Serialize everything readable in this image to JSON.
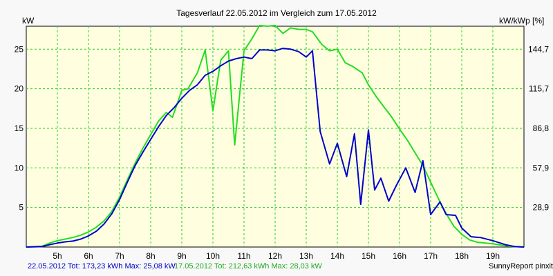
{
  "chart_data": {
    "type": "line",
    "title": "Tagesverlauf 22.05.2012 im Vergleich zum 17.05.2012",
    "ylabel_left": "kW",
    "ylabel_right": "kW/kWp [%]",
    "x_ticks": [
      "5h",
      "6h",
      "7h",
      "8h",
      "9h",
      "10h",
      "11h",
      "12h",
      "13h",
      "14h",
      "15h",
      "16h",
      "17h",
      "18h",
      "19h"
    ],
    "y_ticks_left": [
      "5",
      "10",
      "15",
      "20",
      "25"
    ],
    "y_ticks_right": [
      "28,9",
      "57,9",
      "86,8",
      "115,7",
      "144,7"
    ],
    "xlim": [
      4,
      20
    ],
    "ylim": [
      0,
      27.9
    ],
    "grid": true,
    "background_color": "#ffffe0",
    "grid_color": "#22cc22",
    "series": [
      {
        "name": "22.05.2012",
        "color": "#0000cc",
        "points": [
          [
            4.0,
            0.0
          ],
          [
            4.5,
            0.05
          ],
          [
            4.75,
            0.3
          ],
          [
            5.0,
            0.5
          ],
          [
            5.25,
            0.65
          ],
          [
            5.5,
            0.75
          ],
          [
            5.75,
            1.0
          ],
          [
            6.0,
            1.4
          ],
          [
            6.25,
            2.0
          ],
          [
            6.5,
            2.9
          ],
          [
            6.75,
            4.2
          ],
          [
            7.0,
            6.0
          ],
          [
            7.25,
            8.2
          ],
          [
            7.5,
            10.3
          ],
          [
            7.75,
            12.0
          ],
          [
            8.0,
            13.6
          ],
          [
            8.25,
            15.2
          ],
          [
            8.5,
            16.6
          ],
          [
            8.75,
            17.6
          ],
          [
            9.0,
            18.8
          ],
          [
            9.25,
            19.8
          ],
          [
            9.5,
            20.5
          ],
          [
            9.75,
            21.7
          ],
          [
            10.0,
            22.2
          ],
          [
            10.25,
            22.9
          ],
          [
            10.5,
            23.5
          ],
          [
            10.75,
            23.8
          ],
          [
            11.0,
            24.0
          ],
          [
            11.25,
            23.8
          ],
          [
            11.5,
            24.9
          ],
          [
            11.75,
            24.9
          ],
          [
            12.0,
            24.8
          ],
          [
            12.25,
            25.1
          ],
          [
            12.5,
            25.0
          ],
          [
            12.75,
            24.7
          ],
          [
            13.0,
            24.0
          ],
          [
            13.2,
            24.8
          ],
          [
            13.45,
            14.6
          ],
          [
            13.75,
            10.5
          ],
          [
            14.0,
            13.1
          ],
          [
            14.3,
            8.9
          ],
          [
            14.55,
            14.3
          ],
          [
            14.75,
            5.4
          ],
          [
            15.0,
            14.8
          ],
          [
            15.2,
            7.2
          ],
          [
            15.4,
            8.7
          ],
          [
            15.65,
            5.8
          ],
          [
            15.9,
            7.8
          ],
          [
            16.2,
            10.0
          ],
          [
            16.5,
            6.9
          ],
          [
            16.75,
            10.9
          ],
          [
            17.0,
            4.1
          ],
          [
            17.3,
            5.7
          ],
          [
            17.5,
            4.1
          ],
          [
            17.8,
            4.0
          ],
          [
            18.0,
            2.4
          ],
          [
            18.3,
            1.3
          ],
          [
            18.6,
            1.2
          ],
          [
            19.0,
            0.8
          ],
          [
            19.4,
            0.3
          ],
          [
            19.7,
            0.05
          ],
          [
            20.0,
            0.0
          ]
        ]
      },
      {
        "name": "17.05.2012",
        "color": "#22dd22",
        "points": [
          [
            4.0,
            0.0
          ],
          [
            4.5,
            0.1
          ],
          [
            4.75,
            0.5
          ],
          [
            5.0,
            0.8
          ],
          [
            5.25,
            1.0
          ],
          [
            5.5,
            1.2
          ],
          [
            5.75,
            1.5
          ],
          [
            6.0,
            1.9
          ],
          [
            6.25,
            2.5
          ],
          [
            6.5,
            3.3
          ],
          [
            6.75,
            4.5
          ],
          [
            7.0,
            6.3
          ],
          [
            7.25,
            8.5
          ],
          [
            7.5,
            10.6
          ],
          [
            7.75,
            12.5
          ],
          [
            8.0,
            14.2
          ],
          [
            8.25,
            15.9
          ],
          [
            8.5,
            17.0
          ],
          [
            8.7,
            16.4
          ],
          [
            9.0,
            19.8
          ],
          [
            9.2,
            20.0
          ],
          [
            9.5,
            22.0
          ],
          [
            9.75,
            24.9
          ],
          [
            10.0,
            17.2
          ],
          [
            10.25,
            23.6
          ],
          [
            10.5,
            24.8
          ],
          [
            10.7,
            12.9
          ],
          [
            11.0,
            24.8
          ],
          [
            11.25,
            26.3
          ],
          [
            11.5,
            28.0
          ],
          [
            11.75,
            27.9
          ],
          [
            12.0,
            28.0
          ],
          [
            12.25,
            27.0
          ],
          [
            12.5,
            27.7
          ],
          [
            12.75,
            27.5
          ],
          [
            13.0,
            27.5
          ],
          [
            13.2,
            27.2
          ],
          [
            13.5,
            25.6
          ],
          [
            13.75,
            24.8
          ],
          [
            14.0,
            25.0
          ],
          [
            14.25,
            23.3
          ],
          [
            14.5,
            22.8
          ],
          [
            14.8,
            22.0
          ],
          [
            15.0,
            20.5
          ],
          [
            15.25,
            19.0
          ],
          [
            15.5,
            17.7
          ],
          [
            15.75,
            16.4
          ],
          [
            16.0,
            14.9
          ],
          [
            16.25,
            13.5
          ],
          [
            16.5,
            11.9
          ],
          [
            16.75,
            10.3
          ],
          [
            17.0,
            8.2
          ],
          [
            17.25,
            6.1
          ],
          [
            17.5,
            4.2
          ],
          [
            17.75,
            2.6
          ],
          [
            18.0,
            1.6
          ],
          [
            18.25,
            0.9
          ],
          [
            18.5,
            0.6
          ],
          [
            18.75,
            0.5
          ],
          [
            19.0,
            0.4
          ],
          [
            19.25,
            0.25
          ],
          [
            19.5,
            0.1
          ],
          [
            20.0,
            0.0
          ]
        ]
      }
    ]
  },
  "footer": {
    "left_a": "22.05.2012 Tot: 173,23 kWh Max: 25,08 kW",
    "left_b": "17.05.2012 Tot: 212,63 kWh Max: 28,03 kW",
    "right": "SunnyReport pinxit"
  }
}
